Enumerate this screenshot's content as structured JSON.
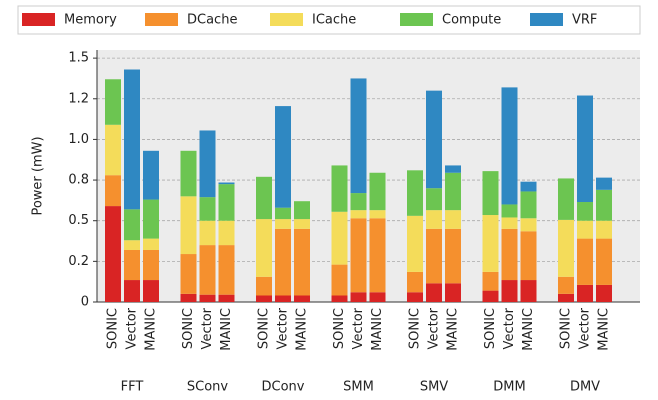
{
  "chart_data": {
    "type": "grouped-stacked-bar",
    "ylabel": "Power (mW)",
    "groups": [
      "FFT",
      "SConv",
      "DConv",
      "SMM",
      "SMV",
      "DMM",
      "DMV"
    ],
    "bars": [
      "SONIC",
      "Vector",
      "MANIC"
    ],
    "ylim": [
      0,
      1.55
    ],
    "yticks": [
      0,
      {
        "value": 0.25,
        "label": "0.2"
      },
      0.5,
      {
        "value": 0.75,
        "label": "0.8"
      },
      {
        "value": 1,
        "label": "1.0"
      },
      {
        "value": 1.25,
        "label": "1.2"
      },
      1.5
    ],
    "grid": true,
    "legend": "top",
    "series": [
      {
        "name": "Memory",
        "color": "#d92424",
        "values": [
          [
            0.59,
            0.135,
            0.135
          ],
          [
            0.05,
            0.045,
            0.045
          ],
          [
            0.04,
            0.04,
            0.04
          ],
          [
            0.04,
            0.06,
            0.06
          ],
          [
            0.06,
            0.115,
            0.115
          ],
          [
            0.07,
            0.135,
            0.135
          ],
          [
            0.05,
            0.105,
            0.105
          ]
        ]
      },
      {
        "name": "DCache",
        "color": "#f5902e",
        "values": [
          [
            0.19,
            0.185,
            0.185
          ],
          [
            0.245,
            0.305,
            0.305
          ],
          [
            0.115,
            0.41,
            0.41
          ],
          [
            0.19,
            0.455,
            0.455
          ],
          [
            0.125,
            0.335,
            0.335
          ],
          [
            0.115,
            0.315,
            0.3
          ],
          [
            0.105,
            0.285,
            0.285
          ]
        ]
      },
      {
        "name": "ICache",
        "color": "#f4dc5a",
        "values": [
          [
            0.31,
            0.06,
            0.07
          ],
          [
            0.355,
            0.15,
            0.15
          ],
          [
            0.355,
            0.06,
            0.06
          ],
          [
            0.325,
            0.05,
            0.05
          ],
          [
            0.345,
            0.115,
            0.115
          ],
          [
            0.35,
            0.07,
            0.08
          ],
          [
            0.35,
            0.11,
            0.11
          ]
        ]
      },
      {
        "name": "Compute",
        "color": "#6cc551",
        "values": [
          [
            0.28,
            0.19,
            0.24
          ],
          [
            0.28,
            0.145,
            0.225
          ],
          [
            0.26,
            0.07,
            0.11
          ],
          [
            0.285,
            0.105,
            0.23
          ],
          [
            0.28,
            0.135,
            0.23
          ],
          [
            0.27,
            0.08,
            0.165
          ],
          [
            0.255,
            0.115,
            0.19
          ]
        ]
      },
      {
        "name": "VRF",
        "color": "#2f88c2",
        "values": [
          [
            0,
            0.86,
            0.3
          ],
          [
            0,
            0.41,
            0.01
          ],
          [
            0,
            0.625,
            0
          ],
          [
            0,
            0.705,
            0
          ],
          [
            0,
            0.6,
            0.045
          ],
          [
            0,
            0.72,
            0.06
          ],
          [
            0,
            0.655,
            0.075
          ]
        ]
      }
    ]
  }
}
